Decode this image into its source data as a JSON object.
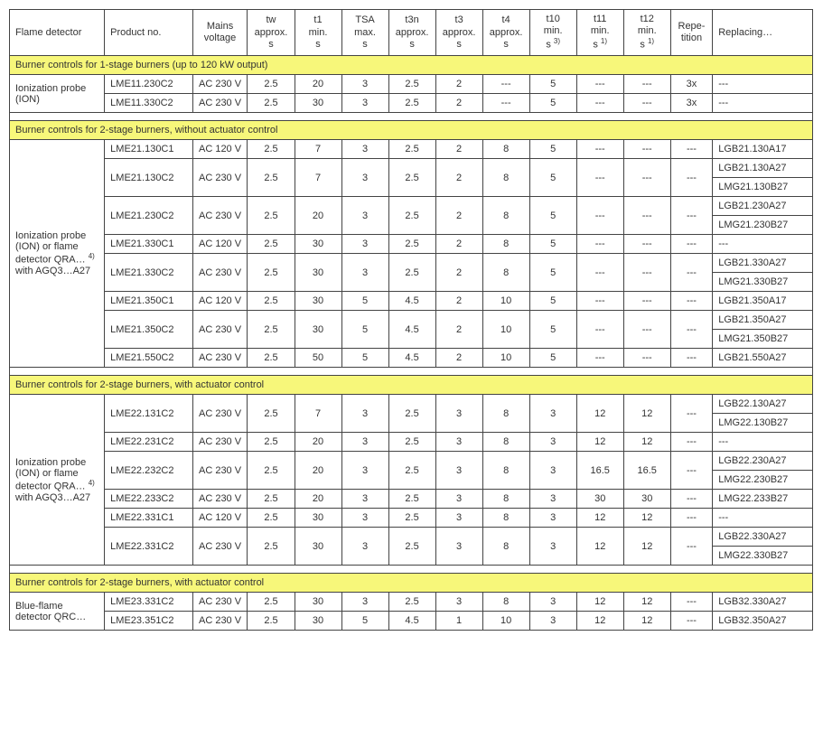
{
  "headers": {
    "flame_detector": "Flame detector",
    "product_no": "Product no.",
    "mains_voltage": "Mains voltage",
    "tw": "tw approx. s",
    "t1": "t1 min. s",
    "tsa": "TSA max. s",
    "t3n": "t3n approx. s",
    "t3": "t3 approx. s",
    "t4": "t4 approx. s",
    "t10": "t10 min. s ³⁾",
    "t11": "t11 min. s ¹⁾",
    "t12": "t12 min. s ¹⁾",
    "repetition": "Repe-tition",
    "replacing": "Replacing…"
  },
  "sections": [
    {
      "title": "Burner controls for 1-stage burners (up to 120 kW output)",
      "detector": "Ionization probe (ION)",
      "rows": [
        {
          "pn": "LME11.230C2",
          "mv": "AC 230 V",
          "tw": "2.5",
          "t1": "20",
          "tsa": "3",
          "t3n": "2.5",
          "t3": "2",
          "t4": "---",
          "t10": "5",
          "t11": "---",
          "t12": "---",
          "rep": "3x",
          "repl": [
            "---"
          ]
        },
        {
          "pn": "LME11.330C2",
          "mv": "AC 230 V",
          "tw": "2.5",
          "t1": "30",
          "tsa": "3",
          "t3n": "2.5",
          "t3": "2",
          "t4": "---",
          "t10": "5",
          "t11": "---",
          "t12": "---",
          "rep": "3x",
          "repl": [
            "---"
          ]
        }
      ]
    },
    {
      "title": "Burner controls for 2-stage burners, without actuator control",
      "detector": "Ionization probe (ION) or flame detector QRA… ⁴⁾ with AGQ3…A27",
      "rows": [
        {
          "pn": "LME21.130C1",
          "mv": "AC 120 V",
          "tw": "2.5",
          "t1": "7",
          "tsa": "3",
          "t3n": "2.5",
          "t3": "2",
          "t4": "8",
          "t10": "5",
          "t11": "---",
          "t12": "---",
          "rep": "---",
          "repl": [
            "LGB21.130A17"
          ]
        },
        {
          "pn": "LME21.130C2",
          "mv": "AC 230 V",
          "tw": "2.5",
          "t1": "7",
          "tsa": "3",
          "t3n": "2.5",
          "t3": "2",
          "t4": "8",
          "t10": "5",
          "t11": "---",
          "t12": "---",
          "rep": "---",
          "repl": [
            "LGB21.130A27",
            "LMG21.130B27"
          ]
        },
        {
          "pn": "LME21.230C2",
          "mv": "AC 230 V",
          "tw": "2.5",
          "t1": "20",
          "tsa": "3",
          "t3n": "2.5",
          "t3": "2",
          "t4": "8",
          "t10": "5",
          "t11": "---",
          "t12": "---",
          "rep": "---",
          "repl": [
            "LGB21.230A27",
            "LMG21.230B27"
          ]
        },
        {
          "pn": "LME21.330C1",
          "mv": "AC 120 V",
          "tw": "2.5",
          "t1": "30",
          "tsa": "3",
          "t3n": "2.5",
          "t3": "2",
          "t4": "8",
          "t10": "5",
          "t11": "---",
          "t12": "---",
          "rep": "---",
          "repl": [
            "---"
          ]
        },
        {
          "pn": "LME21.330C2",
          "mv": "AC 230 V",
          "tw": "2.5",
          "t1": "30",
          "tsa": "3",
          "t3n": "2.5",
          "t3": "2",
          "t4": "8",
          "t10": "5",
          "t11": "---",
          "t12": "---",
          "rep": "---",
          "repl": [
            "LGB21.330A27",
            "LMG21.330B27"
          ]
        },
        {
          "pn": "LME21.350C1",
          "mv": "AC 120 V",
          "tw": "2.5",
          "t1": "30",
          "tsa": "5",
          "t3n": "4.5",
          "t3": "2",
          "t4": "10",
          "t10": "5",
          "t11": "---",
          "t12": "---",
          "rep": "---",
          "repl": [
            "LGB21.350A17"
          ]
        },
        {
          "pn": "LME21.350C2",
          "mv": "AC 230 V",
          "tw": "2.5",
          "t1": "30",
          "tsa": "5",
          "t3n": "4.5",
          "t3": "2",
          "t4": "10",
          "t10": "5",
          "t11": "---",
          "t12": "---",
          "rep": "---",
          "repl": [
            "LGB21.350A27",
            "LMG21.350B27"
          ]
        },
        {
          "pn": "LME21.550C2",
          "mv": "AC 230 V",
          "tw": "2.5",
          "t1": "50",
          "tsa": "5",
          "t3n": "4.5",
          "t3": "2",
          "t4": "10",
          "t10": "5",
          "t11": "---",
          "t12": "---",
          "rep": "---",
          "repl": [
            "LGB21.550A27"
          ]
        }
      ]
    },
    {
      "title": "Burner controls for 2-stage burners, with actuator control",
      "detector": "Ionization probe (ION) or flame detector QRA… ⁴⁾ with AGQ3…A27",
      "rows": [
        {
          "pn": "LME22.131C2",
          "mv": "AC 230 V",
          "tw": "2.5",
          "t1": "7",
          "tsa": "3",
          "t3n": "2.5",
          "t3": "3",
          "t4": "8",
          "t10": "3",
          "t11": "12",
          "t12": "12",
          "rep": "---",
          "repl": [
            "LGB22.130A27",
            "LMG22.130B27"
          ]
        },
        {
          "pn": "LME22.231C2",
          "mv": "AC 230 V",
          "tw": "2.5",
          "t1": "20",
          "tsa": "3",
          "t3n": "2.5",
          "t3": "3",
          "t4": "8",
          "t10": "3",
          "t11": "12",
          "t12": "12",
          "rep": "---",
          "repl": [
            "---"
          ]
        },
        {
          "pn": "LME22.232C2",
          "mv": "AC 230 V",
          "tw": "2.5",
          "t1": "20",
          "tsa": "3",
          "t3n": "2.5",
          "t3": "3",
          "t4": "8",
          "t10": "3",
          "t11": "16.5",
          "t12": "16.5",
          "rep": "---",
          "repl": [
            "LGB22.230A27",
            "LMG22.230B27"
          ]
        },
        {
          "pn": "LME22.233C2",
          "mv": "AC 230 V",
          "tw": "2.5",
          "t1": "20",
          "tsa": "3",
          "t3n": "2.5",
          "t3": "3",
          "t4": "8",
          "t10": "3",
          "t11": "30",
          "t12": "30",
          "rep": "---",
          "repl": [
            "LMG22.233B27"
          ]
        },
        {
          "pn": "LME22.331C1",
          "mv": "AC 120 V",
          "tw": "2.5",
          "t1": "30",
          "tsa": "3",
          "t3n": "2.5",
          "t3": "3",
          "t4": "8",
          "t10": "3",
          "t11": "12",
          "t12": "12",
          "rep": "---",
          "repl": [
            "---"
          ]
        },
        {
          "pn": "LME22.331C2",
          "mv": "AC 230 V",
          "tw": "2.5",
          "t1": "30",
          "tsa": "3",
          "t3n": "2.5",
          "t3": "3",
          "t4": "8",
          "t10": "3",
          "t11": "12",
          "t12": "12",
          "rep": "---",
          "repl": [
            "LGB22.330A27",
            "LMG22.330B27"
          ]
        }
      ]
    },
    {
      "title": "Burner controls for 2-stage burners, with actuator control",
      "detector": "Blue-flame detector QRC…",
      "rows": [
        {
          "pn": "LME23.331C2",
          "mv": "AC 230 V",
          "tw": "2.5",
          "t1": "30",
          "tsa": "3",
          "t3n": "2.5",
          "t3": "3",
          "t4": "8",
          "t10": "3",
          "t11": "12",
          "t12": "12",
          "rep": "---",
          "repl": [
            "LGB32.330A27"
          ]
        },
        {
          "pn": "LME23.351C2",
          "mv": "AC 230 V",
          "tw": "2.5",
          "t1": "30",
          "tsa": "5",
          "t3n": "4.5",
          "t3": "1",
          "t4": "10",
          "t10": "3",
          "t11": "12",
          "t12": "12",
          "rep": "---",
          "repl": [
            "LGB32.350A27"
          ]
        }
      ]
    }
  ]
}
